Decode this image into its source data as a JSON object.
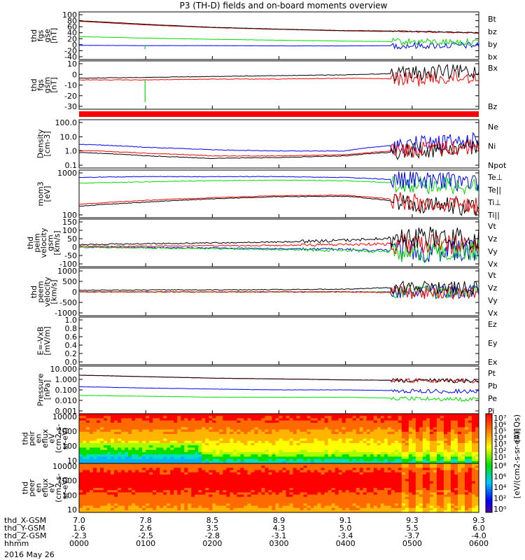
{
  "title": "P3 (TH-D) fields and on-board moments overview",
  "date_label": "2016 May 26",
  "colors": {
    "black": "#000000",
    "red": "#ff0000",
    "green": "#00ee00",
    "blue": "#0000ff",
    "wave_black": "#000000",
    "wave_red": "#e00000",
    "wave_green": "#00dd00",
    "wave_blue": "#0000ff"
  },
  "xaxis": {
    "ticks": [
      "0000",
      "0100",
      "0200",
      "0300",
      "0400",
      "0500",
      "0600"
    ],
    "rows": [
      {
        "label": "thd_X-GSM",
        "values": [
          "7.0",
          "7.8",
          "8.5",
          "8.9",
          "9.1",
          "9.3",
          "9.3"
        ]
      },
      {
        "label": "thd_Y-GSM",
        "values": [
          "1.6",
          "2.6",
          "3.5",
          "4.3",
          "5.0",
          "5.5",
          "6.0"
        ]
      },
      {
        "label": "thd_Z-GSM",
        "values": [
          "-2.3",
          "-2.5",
          "-2.8",
          "-3.1",
          "-3.4",
          "-3.7",
          "-4.0"
        ]
      },
      {
        "label": "hhmm",
        "values": [
          "0000",
          "0100",
          "0200",
          "0300",
          "0400",
          "0500",
          "0600"
        ]
      }
    ]
  },
  "panels": [
    {
      "id": "fgs-gse",
      "ylabel": [
        "thd",
        "fgs",
        "gse",
        "[nT]"
      ],
      "yticks": [
        "100",
        "80",
        "60",
        "40",
        "20",
        "0",
        "-20",
        "-40"
      ],
      "legend": [
        {
          "t": "Bt",
          "c": "black"
        },
        {
          "t": "bz",
          "c": "red"
        },
        {
          "t": "by",
          "c": "green"
        },
        {
          "t": "bx",
          "c": "blue"
        }
      ]
    },
    {
      "id": "fgs-gsm",
      "ylabel": [
        "thd",
        "fgs",
        "gsm",
        "[nT]"
      ],
      "yticks": [
        "10",
        "0",
        "-10",
        "-20",
        "-30"
      ],
      "legend": [
        {
          "t": "Bx",
          "c": "black"
        },
        {
          "t": "Bz",
          "c": "red"
        }
      ]
    },
    {
      "id": "density",
      "ylabel": [
        "Density",
        "[cm-3]"
      ],
      "yticks": [
        "100.0",
        "10.0",
        "1.0",
        "0.1"
      ],
      "legend": [
        {
          "t": "Ne",
          "c": "red"
        },
        {
          "t": "Ni",
          "c": "black"
        },
        {
          "t": "Npot",
          "c": "blue"
        }
      ]
    },
    {
      "id": "temp",
      "ylabel": [
        "mom3",
        "[eV]"
      ],
      "yticks": [
        "1000",
        "100"
      ],
      "legend": [
        {
          "t": "Te⊥",
          "c": "red"
        },
        {
          "t": "Te||",
          "c": "black"
        },
        {
          "t": "Ti⊥",
          "c": "blue"
        },
        {
          "t": "Ti||",
          "c": "green"
        }
      ]
    },
    {
      "id": "peim-vel",
      "ylabel": [
        "thd",
        "peim",
        "velocity",
        "gsm",
        "[km/s]"
      ],
      "yticks": [
        "150",
        "100",
        "50",
        "0",
        "-50",
        "-100"
      ],
      "legend": [
        {
          "t": "Vt",
          "c": "black"
        },
        {
          "t": "Vz",
          "c": "red"
        },
        {
          "t": "Vy",
          "c": "green"
        },
        {
          "t": "Vx",
          "c": "blue"
        }
      ]
    },
    {
      "id": "peem-vel",
      "ylabel": [
        "thd",
        "peem",
        "velocity",
        "[km/s]"
      ],
      "yticks": [
        "1000",
        "500",
        "0",
        "-500",
        "-1000"
      ],
      "legend": [
        {
          "t": "Vt",
          "c": "black"
        },
        {
          "t": "Vz",
          "c": "red"
        },
        {
          "t": "Vy",
          "c": "green"
        },
        {
          "t": "Vx",
          "c": "blue"
        }
      ]
    },
    {
      "id": "efield",
      "ylabel": [
        "E=-VxB",
        "[mV/m]"
      ],
      "yticks": [
        "1.0",
        "0.8",
        "0.6",
        "0.4",
        "0.2",
        "0.0"
      ],
      "legend": [
        {
          "t": "Ez",
          "c": "red"
        },
        {
          "t": "Ey",
          "c": "green"
        },
        {
          "t": "Ex",
          "c": "blue"
        }
      ]
    },
    {
      "id": "pressure",
      "ylabel": [
        "Pressure",
        "[nPa]"
      ],
      "yticks": [
        "10.000",
        "1.000",
        "0.100",
        "0.010",
        "0.001"
      ],
      "legend": [
        {
          "t": "Pt",
          "c": "black"
        },
        {
          "t": "Pb",
          "c": "red"
        },
        {
          "t": "Pe",
          "c": "green"
        },
        {
          "t": "Pi",
          "c": "blue"
        }
      ]
    },
    {
      "id": "peir-flux",
      "ylabel": [
        "thd",
        "peir",
        "en",
        "eflux",
        "eV",
        "(cm2-s-",
        "sr-eV)"
      ],
      "yticks": [
        "10000",
        "1000",
        "100",
        "10"
      ],
      "legend": []
    },
    {
      "id": "peer-flux",
      "ylabel": [
        "thd",
        "peer",
        "en",
        "eflux",
        "eV",
        "(cm2-s-",
        "sr-eV)"
      ],
      "yticks": [
        "10000",
        "1000",
        "100",
        "10"
      ],
      "legend": []
    }
  ],
  "colorbar": {
    "label": "[eV/(cm2-s-sr-eV)]",
    "top_label": "(All Qs)",
    "upper_ticks": [
      "10⁷",
      "10⁶",
      "10⁵",
      "10⁴",
      "10³",
      "10²",
      "10¹"
    ],
    "lower_ticks": [
      "10⁸",
      "10⁶",
      "10⁴",
      "10²",
      "10⁰"
    ]
  },
  "chart_data": [
    {
      "type": "line",
      "title": "P3 (TH-D) fields and on-board moments overview",
      "ylabel": "thd fgs gse [nT]",
      "x": [
        "0000",
        "0100",
        "0200",
        "0300",
        "0400",
        "0500",
        "0600"
      ],
      "ylim": [
        -40,
        100
      ],
      "series": [
        {
          "name": "Bt",
          "values": [
            80,
            68,
            58,
            52,
            47,
            45,
            40
          ]
        },
        {
          "name": "bz",
          "values": [
            78,
            66,
            57,
            51,
            46,
            43,
            39
          ]
        },
        {
          "name": "by",
          "values": [
            27,
            22,
            18,
            15,
            12,
            10,
            8
          ]
        },
        {
          "name": "bx",
          "values": [
            -2,
            -3,
            -3,
            -4,
            -4,
            -3,
            -2
          ]
        }
      ]
    },
    {
      "type": "line",
      "ylabel": "thd fgs gsm [nT]",
      "x": [
        "0000",
        "0100",
        "0200",
        "0300",
        "0400",
        "0500",
        "0600"
      ],
      "ylim": [
        -35,
        15
      ],
      "series": [
        {
          "name": "Bx",
          "values": [
            -2,
            -1,
            0,
            1,
            2,
            4,
            6
          ]
        },
        {
          "name": "Bz",
          "values": [
            -4,
            -4,
            -3,
            -3,
            -2,
            -3,
            0
          ]
        }
      ]
    },
    {
      "type": "line",
      "ylabel": "Density [cm-3]",
      "x": [
        "0000",
        "0100",
        "0200",
        "0300",
        "0400",
        "0500",
        "0600"
      ],
      "ylim": [
        0.1,
        100
      ],
      "yscale": "log",
      "series": [
        {
          "name": "Ne",
          "values": [
            1.1,
            0.7,
            0.45,
            0.45,
            0.55,
            1.2,
            2.0
          ]
        },
        {
          "name": "Ni",
          "values": [
            0.8,
            0.45,
            0.3,
            0.35,
            0.45,
            1.0,
            1.8
          ]
        },
        {
          "name": "Npot",
          "values": [
            3.0,
            1.8,
            1.2,
            1.0,
            1.0,
            3.0,
            5.0
          ]
        }
      ]
    },
    {
      "type": "line",
      "ylabel": "mom3 [eV]",
      "x": [
        "0000",
        "0100",
        "0200",
        "0300",
        "0400",
        "0500",
        "0600"
      ],
      "ylim": [
        40,
        8000
      ],
      "yscale": "log",
      "series": [
        {
          "name": "Te⊥",
          "values": [
            150,
            250,
            350,
            450,
            480,
            200,
            120
          ]
        },
        {
          "name": "Te||",
          "values": [
            120,
            200,
            300,
            400,
            420,
            150,
            100
          ]
        },
        {
          "name": "Ti⊥",
          "values": [
            4500,
            5000,
            5000,
            5000,
            4500,
            3000,
            2500
          ]
        },
        {
          "name": "Ti||",
          "values": [
            2200,
            2600,
            3000,
            3200,
            3000,
            2000,
            1500
          ]
        }
      ]
    },
    {
      "type": "line",
      "ylabel": "thd peim velocity gsm [km/s]",
      "x": [
        "0000",
        "0100",
        "0200",
        "0300",
        "0400",
        "0500",
        "0600"
      ],
      "ylim": [
        -100,
        150
      ],
      "series": [
        {
          "name": "Vt",
          "values": [
            15,
            20,
            25,
            30,
            40,
            60,
            50
          ]
        },
        {
          "name": "Vz",
          "values": [
            5,
            5,
            8,
            10,
            15,
            20,
            15
          ]
        },
        {
          "name": "Vy",
          "values": [
            0,
            -5,
            -10,
            -15,
            -20,
            -30,
            -20
          ]
        },
        {
          "name": "Vx",
          "values": [
            0,
            -3,
            -5,
            -10,
            -15,
            -25,
            -20
          ]
        }
      ]
    },
    {
      "type": "line",
      "ylabel": "thd peem velocity [km/s]",
      "x": [
        "0000",
        "0100",
        "0200",
        "0300",
        "0400",
        "0500",
        "0600"
      ],
      "ylim": [
        -1000,
        1000
      ],
      "series": [
        {
          "name": "Vt",
          "values": [
            80,
            90,
            100,
            110,
            130,
            250,
            200
          ]
        },
        {
          "name": "Vz",
          "values": [
            0,
            0,
            0,
            0,
            0,
            -50,
            0
          ]
        },
        {
          "name": "Vy",
          "values": [
            0,
            0,
            0,
            0,
            0,
            0,
            0
          ]
        },
        {
          "name": "Vx",
          "values": [
            0,
            0,
            0,
            0,
            0,
            0,
            0
          ]
        }
      ]
    },
    {
      "type": "line",
      "ylabel": "E=-VxB [mV/m]",
      "x": [
        "0000",
        "0100",
        "0200",
        "0300",
        "0400",
        "0500",
        "0600"
      ],
      "ylim": [
        0.0,
        1.0
      ],
      "series": []
    },
    {
      "type": "line",
      "ylabel": "Pressure [nPa]",
      "x": [
        "0000",
        "0100",
        "0200",
        "0300",
        "0400",
        "0500",
        "0600"
      ],
      "ylim": [
        0.001,
        10
      ],
      "yscale": "log",
      "series": [
        {
          "name": "Pt",
          "values": [
            2.5,
            1.8,
            1.3,
            1.1,
            0.9,
            0.8,
            0.7
          ]
        },
        {
          "name": "Pb",
          "values": [
            2.5,
            1.8,
            1.3,
            1.1,
            0.9,
            0.8,
            0.7
          ]
        },
        {
          "name": "Pe",
          "values": [
            0.03,
            0.025,
            0.02,
            0.02,
            0.02,
            0.015,
            0.012
          ]
        },
        {
          "name": "Pi",
          "values": [
            0.2,
            0.15,
            0.12,
            0.1,
            0.1,
            0.08,
            0.07
          ]
        }
      ]
    },
    {
      "type": "heatmap",
      "ylabel": "thd peir en eflux eV (cm2-s-sr-eV)",
      "x": [
        "0000",
        "0100",
        "0200",
        "0300",
        "0400",
        "0500",
        "0600"
      ],
      "ylim": [
        6,
        30000
      ],
      "yscale": "log"
    },
    {
      "type": "heatmap",
      "ylabel": "thd peer en eflux eV (cm2-s-sr-eV)",
      "x": [
        "0000",
        "0100",
        "0200",
        "0300",
        "0400",
        "0500",
        "0600"
      ],
      "ylim": [
        6,
        30000
      ],
      "yscale": "log"
    }
  ]
}
